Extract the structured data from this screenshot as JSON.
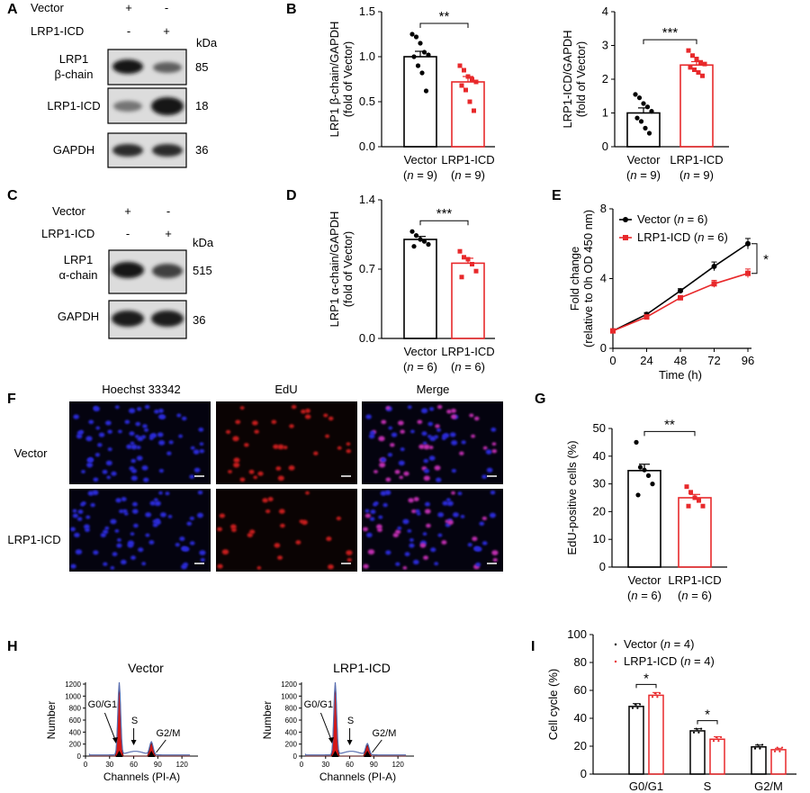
{
  "colors": {
    "vector": "#000000",
    "icd": "#e8292b",
    "hoechst": "#2a2ad8",
    "edu": "#c61e1e",
    "hist": "#d41818"
  },
  "panels": {
    "A": "A",
    "B": "B",
    "C": "C",
    "D": "D",
    "E": "E",
    "F": "F",
    "G": "G",
    "H": "H",
    "I": "I"
  },
  "blotA": {
    "rows": [
      {
        "label": "Vector",
        "marks": [
          "+",
          "-"
        ]
      },
      {
        "label": "LRP1-ICD",
        "marks": [
          "-",
          "+"
        ]
      }
    ],
    "kda_label": "kDa",
    "bands": [
      {
        "name": "LRP1 β-chain",
        "lines": [
          "LRP1",
          "β-chain"
        ],
        "kda": "85",
        "intensity": [
          1.0,
          0.65
        ]
      },
      {
        "name": "LRP1-ICD",
        "lines": [
          "LRP1-ICD"
        ],
        "kda": "18",
        "intensity": [
          0.55,
          1.0
        ]
      },
      {
        "name": "GAPDH",
        "lines": [
          "GAPDH"
        ],
        "kda": "36",
        "intensity": [
          0.9,
          0.9
        ]
      }
    ]
  },
  "blotC": {
    "rows": [
      {
        "label": "Vector",
        "marks": [
          "+",
          "-"
        ]
      },
      {
        "label": "LRP1-ICD",
        "marks": [
          "-",
          "+"
        ]
      }
    ],
    "kda_label": "kDa",
    "bands": [
      {
        "name": "LRP1 α-chain",
        "lines": [
          "LRP1",
          "α-chain"
        ],
        "kda": "515",
        "intensity": [
          1.0,
          0.8
        ]
      },
      {
        "name": "GAPDH",
        "lines": [
          "GAPDH"
        ],
        "kda": "36",
        "intensity": [
          0.95,
          0.95
        ]
      }
    ]
  },
  "micrographs": {
    "columns": [
      "Hoechst 33342",
      "EdU",
      "Merge"
    ],
    "rows": [
      "Vector",
      "LRP1-ICD"
    ]
  },
  "flow": {
    "panels": [
      {
        "title": "Vector",
        "g0g1": 1200,
        "s": "S",
        "g2m": "G2/M",
        "g0g1_label": "G0/G1",
        "g2m_height": 210
      },
      {
        "title": "LRP1-ICD",
        "g0g1": 1200,
        "s": "S",
        "g2m": "G2/M",
        "g0g1_label": "G0/G1",
        "g2m_height": 180
      }
    ],
    "ylabel": "Number",
    "xlabel": "Channels (PI-A)",
    "yticks": [
      "0",
      "200",
      "400",
      "600",
      "800",
      "1000",
      "1200"
    ],
    "xticks": [
      "0",
      "30",
      "60",
      "90",
      "120"
    ]
  },
  "chart_data": [
    {
      "panel": "B-left",
      "type": "bar",
      "categories": [
        "Vector",
        "LRP1-ICD"
      ],
      "category_n": [
        "(n = 9)",
        "(n = 9)"
      ],
      "values": [
        1.0,
        0.72
      ],
      "errors": [
        0.06,
        0.06
      ],
      "points": [
        [
          1.25,
          1.22,
          1.15,
          1.05,
          1.02,
          1.0,
          0.9,
          0.82,
          0.62
        ],
        [
          0.9,
          0.85,
          0.78,
          0.75,
          0.72,
          0.68,
          0.63,
          0.5,
          0.4
        ]
      ],
      "ylabel": [
        "LRP1 β-chain/GAPDH",
        "(fold of Vector)"
      ],
      "ylim": [
        0,
        1.5
      ],
      "yticks": [
        "0.0",
        "0.5",
        "1.0",
        "1.5"
      ],
      "significance": "**"
    },
    {
      "panel": "B-right",
      "type": "bar",
      "categories": [
        "Vector",
        "LRP1-ICD"
      ],
      "category_n": [
        "(n = 9)",
        "(n = 9)"
      ],
      "values": [
        1.0,
        2.42
      ],
      "errors": [
        0.15,
        0.1
      ],
      "points": [
        [
          1.55,
          1.45,
          1.28,
          1.18,
          1.05,
          0.85,
          0.75,
          0.55,
          0.4
        ],
        [
          2.85,
          2.7,
          2.6,
          2.5,
          2.45,
          2.35,
          2.28,
          2.2,
          2.1
        ]
      ],
      "ylabel": [
        "LRP1-ICD/GAPDH",
        "(fold of Vector)"
      ],
      "ylim": [
        0,
        4
      ],
      "yticks": [
        "0",
        "1",
        "2",
        "3",
        "4"
      ],
      "significance": "***"
    },
    {
      "panel": "D",
      "type": "bar",
      "categories": [
        "Vector",
        "LRP1-ICD"
      ],
      "category_n": [
        "(n = 6)",
        "(n = 6)"
      ],
      "values": [
        1.0,
        0.76
      ],
      "errors": [
        0.03,
        0.05
      ],
      "points": [
        [
          1.08,
          1.04,
          1.0,
          0.98,
          0.95,
          0.93
        ],
        [
          0.88,
          0.82,
          0.8,
          0.75,
          0.68,
          0.62
        ]
      ],
      "ylabel": [
        "LRP1 α-chain/GAPDH",
        "(fold of Vector)"
      ],
      "ylim": [
        0,
        1.4
      ],
      "yticks": [
        "0.0",
        "0.7",
        "1.4"
      ],
      "significance": "***"
    },
    {
      "panel": "E",
      "type": "line",
      "x": [
        0,
        24,
        48,
        72,
        96
      ],
      "series": [
        {
          "name": "Vector (n = 6)",
          "values": [
            1.0,
            1.95,
            3.3,
            4.7,
            6.0
          ],
          "errors": [
            0.05,
            0.1,
            0.12,
            0.25,
            0.3
          ]
        },
        {
          "name": "LRP1-ICD (n = 6)",
          "values": [
            1.0,
            1.8,
            2.9,
            3.7,
            4.3
          ],
          "errors": [
            0.05,
            0.1,
            0.12,
            0.2,
            0.25
          ]
        }
      ],
      "xlabel": "Time (h)",
      "ylabel": [
        "Fold change",
        "(relative to 0h OD 450 nm)"
      ],
      "xlim": [
        0,
        96
      ],
      "ylim": [
        0,
        8
      ],
      "xticks": [
        "0",
        "24",
        "48",
        "72",
        "96"
      ],
      "yticks": [
        "0",
        "4",
        "8"
      ],
      "significance": "*"
    },
    {
      "panel": "G",
      "type": "bar",
      "categories": [
        "Vector",
        "LRP1-ICD"
      ],
      "category_n": [
        "(n = 6)",
        "(n = 6)"
      ],
      "values": [
        34.8,
        25.0
      ],
      "errors": [
        2.3,
        1.2
      ],
      "points": [
        [
          45,
          36,
          35,
          33,
          30,
          26
        ],
        [
          29,
          27,
          25,
          24,
          22,
          22
        ]
      ],
      "ylabel": [
        "EdU-positive cells (%)"
      ],
      "ylim": [
        0,
        50
      ],
      "yticks": [
        "0",
        "10",
        "20",
        "30",
        "40",
        "50"
      ],
      "significance": "**"
    },
    {
      "panel": "I",
      "type": "bar",
      "categories": [
        "G0/G1",
        "S",
        "G2/M"
      ],
      "series": [
        {
          "name": "Vector (n = 4)",
          "values": [
            48.5,
            31.0,
            19.5
          ],
          "errors": [
            2.0,
            1.5,
            1.3
          ]
        },
        {
          "name": "LRP1-ICD (n = 4)",
          "values": [
            56.5,
            25.0,
            17.5
          ],
          "errors": [
            2.0,
            1.8,
            1.0
          ]
        }
      ],
      "ylabel": [
        "Cell cycle (%)"
      ],
      "ylim": [
        0,
        100
      ],
      "yticks": [
        "0",
        "20",
        "40",
        "60",
        "80",
        "100"
      ],
      "significance": [
        "*",
        "*",
        ""
      ]
    }
  ]
}
